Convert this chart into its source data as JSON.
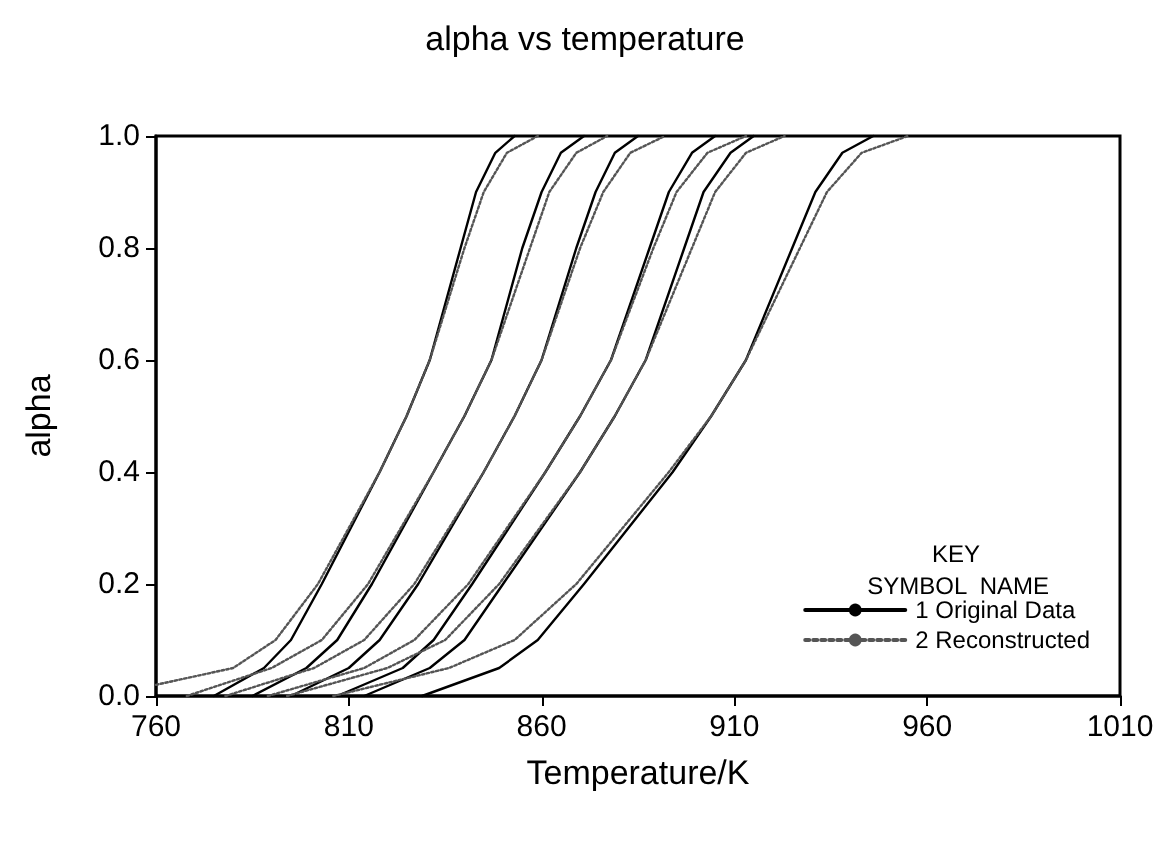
{
  "chart_data": {
    "type": "line",
    "title": "alpha vs temperature",
    "xlabel": "Temperature/K",
    "ylabel": "alpha",
    "legend_title": "KEY",
    "annotations": [
      "SYMBOL  NAME"
    ],
    "xlim": [
      760,
      1010
    ],
    "xticks": [
      760,
      810,
      860,
      910,
      960,
      1010
    ],
    "ylim": [
      0,
      1
    ],
    "yticks": [
      {
        "value": 0,
        "label": "0.0"
      },
      {
        "value": 0.2,
        "label": "0.2"
      },
      {
        "value": 0.4,
        "label": "0.4"
      },
      {
        "value": 0.6,
        "label": "0.6"
      },
      {
        "value": 0.8,
        "label": "0.8"
      },
      {
        "value": 1,
        "label": "1.0"
      }
    ],
    "grid": false,
    "legend": "bottom right",
    "marker": "none",
    "series": [
      {
        "name": "1 Original Data",
        "color": "#000000",
        "line_style": "solid",
        "x": [
          775,
          788,
          795,
          803,
          818,
          825,
          831,
          839,
          843,
          848,
          853
        ],
        "values": [
          0,
          0.05,
          0.1,
          0.2,
          0.4,
          0.5,
          0.6,
          0.8,
          0.9,
          0.97,
          1
        ]
      },
      {
        "name": "2 Reconstructed",
        "color": "#555555",
        "line_style": "dotted",
        "x": [
          760,
          780,
          791,
          802,
          818,
          825,
          831,
          840,
          845,
          851,
          859
        ],
        "values": [
          0.02,
          0.05,
          0.1,
          0.2,
          0.4,
          0.5,
          0.6,
          0.8,
          0.9,
          0.97,
          1
        ]
      },
      {
        "color": "#000000",
        "line_style": "solid",
        "x": [
          785,
          799,
          807,
          816,
          832,
          840,
          847,
          855,
          860,
          865,
          871
        ],
        "values": [
          0,
          0.05,
          0.1,
          0.2,
          0.4,
          0.5,
          0.6,
          0.8,
          0.9,
          0.97,
          1
        ]
      },
      {
        "color": "#555555",
        "line_style": "dotted",
        "x": [
          768,
          790,
          803,
          815,
          832,
          840,
          847,
          857,
          862,
          869,
          877
        ],
        "values": [
          0,
          0.05,
          0.1,
          0.2,
          0.4,
          0.5,
          0.6,
          0.8,
          0.9,
          0.97,
          1
        ]
      },
      {
        "color": "#000000",
        "line_style": "solid",
        "x": [
          795,
          810,
          818,
          828,
          845,
          853,
          860,
          869,
          874,
          879,
          885
        ],
        "values": [
          0,
          0.05,
          0.1,
          0.2,
          0.4,
          0.5,
          0.6,
          0.8,
          0.9,
          0.97,
          1
        ]
      },
      {
        "color": "#555555",
        "line_style": "dotted",
        "x": [
          778,
          801,
          814,
          827,
          845,
          853,
          860,
          870,
          876,
          883,
          892
        ],
        "values": [
          0,
          0.05,
          0.1,
          0.2,
          0.4,
          0.5,
          0.6,
          0.8,
          0.9,
          0.97,
          1
        ]
      },
      {
        "color": "#000000",
        "line_style": "solid",
        "x": [
          807,
          824,
          832,
          842,
          861,
          870,
          878,
          888,
          893,
          899,
          905
        ],
        "values": [
          0,
          0.05,
          0.1,
          0.2,
          0.4,
          0.5,
          0.6,
          0.8,
          0.9,
          0.97,
          1
        ]
      },
      {
        "color": "#555555",
        "line_style": "dotted",
        "x": [
          789,
          814,
          827,
          841,
          861,
          870,
          878,
          889,
          895,
          903,
          913
        ],
        "values": [
          0,
          0.05,
          0.1,
          0.2,
          0.4,
          0.5,
          0.6,
          0.8,
          0.9,
          0.97,
          1
        ]
      },
      {
        "color": "#000000",
        "line_style": "solid",
        "x": [
          814,
          831,
          840,
          850,
          870,
          879,
          887,
          897,
          902,
          909,
          915
        ],
        "values": [
          0,
          0.05,
          0.1,
          0.2,
          0.4,
          0.5,
          0.6,
          0.8,
          0.9,
          0.97,
          1
        ]
      },
      {
        "color": "#555555",
        "line_style": "dotted",
        "x": [
          794,
          820,
          835,
          849,
          870,
          879,
          887,
          899,
          905,
          913,
          923
        ],
        "values": [
          0,
          0.05,
          0.1,
          0.2,
          0.4,
          0.5,
          0.6,
          0.8,
          0.9,
          0.97,
          1
        ]
      },
      {
        "color": "#000000",
        "line_style": "solid",
        "x": [
          829,
          849,
          859,
          871,
          894,
          904,
          913,
          925,
          931,
          938,
          946
        ],
        "values": [
          0,
          0.05,
          0.1,
          0.2,
          0.4,
          0.5,
          0.6,
          0.8,
          0.9,
          0.97,
          1
        ]
      },
      {
        "color": "#555555",
        "line_style": "dotted",
        "x": [
          806,
          836,
          853,
          869,
          893,
          904,
          913,
          927,
          934,
          943,
          955
        ],
        "values": [
          0,
          0.05,
          0.1,
          0.2,
          0.4,
          0.5,
          0.6,
          0.8,
          0.9,
          0.97,
          1
        ]
      }
    ]
  }
}
